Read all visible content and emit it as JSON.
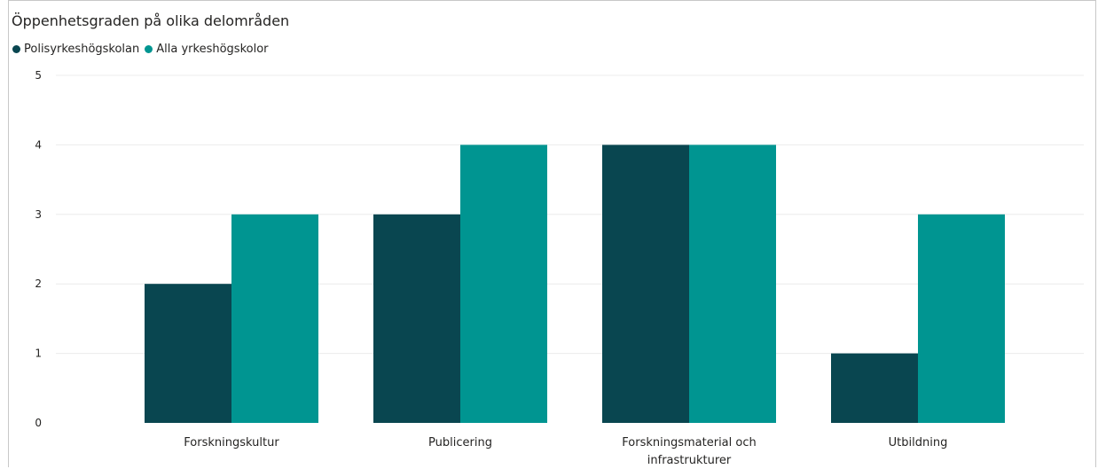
{
  "colors": {
    "series_1": "#094650",
    "series_2": "#009591",
    "grid": "#ececec",
    "text": "#252423"
  },
  "chart_data": {
    "type": "bar",
    "title": "Öppenhetsgraden på olika delområden",
    "xlabel": "",
    "ylabel": "",
    "ylim": [
      0,
      5
    ],
    "yticks": [
      0,
      1,
      2,
      3,
      4,
      5
    ],
    "grid": true,
    "legend_position": "top-left",
    "categories": [
      [
        "Forskningskultur"
      ],
      [
        "Publicering"
      ],
      [
        "Forskningsmaterial och",
        "infrastrukturer"
      ],
      [
        "Utbildning"
      ]
    ],
    "series": [
      {
        "name": "Polisyrkeshögskolan",
        "values": [
          2,
          3,
          4,
          1
        ]
      },
      {
        "name": "Alla yrkeshögskolor",
        "values": [
          3,
          4,
          4,
          3
        ]
      }
    ]
  }
}
